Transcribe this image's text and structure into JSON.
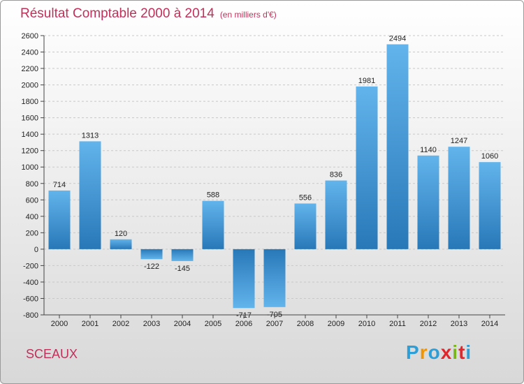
{
  "chart_data": {
    "type": "bar",
    "title": "Résultat Comptable 2000 à 2014",
    "subtitle": "(en milliers d'€)",
    "categories": [
      "2000",
      "2001",
      "2002",
      "2003",
      "2004",
      "2005",
      "2006",
      "2007",
      "2008",
      "2009",
      "2010",
      "2011",
      "2012",
      "2013",
      "2014"
    ],
    "values": [
      714,
      1313,
      120,
      -122,
      -145,
      588,
      -717,
      -705,
      556,
      836,
      1981,
      2494,
      1140,
      1247,
      1060
    ],
    "ylim": [
      -800,
      2600
    ],
    "yticks": [
      -800,
      -600,
      -400,
      -200,
      0,
      200,
      400,
      600,
      800,
      1000,
      1200,
      1400,
      1600,
      1800,
      2000,
      2200,
      2400,
      2600
    ],
    "grid": true,
    "xlabel": "",
    "ylabel": ""
  },
  "commune": "SCEAUX",
  "brand": {
    "letters": [
      "P",
      "r",
      "o",
      "x",
      "i",
      "t",
      "i"
    ],
    "colors": [
      "#2d9fd8",
      "#f29400",
      "#2d9fd8",
      "#e2272c",
      "#7ab51d",
      "#e2272c",
      "#2d9fd8"
    ]
  },
  "colors": {
    "bar_light": "#62b4ec",
    "bar_dark": "#2878b8",
    "accent": "#c0305a"
  }
}
